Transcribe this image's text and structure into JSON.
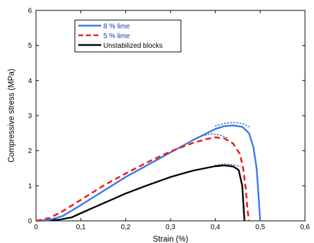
{
  "chart_data": {
    "type": "line",
    "title": "",
    "xlabel": "Strain (%)",
    "ylabel": "Compressive stress (MPa)",
    "xlim": [
      0,
      0.6
    ],
    "ylim": [
      0,
      6
    ],
    "xticks": [
      "0",
      "0,1",
      "0,2",
      "0,3",
      "0,4",
      "0,5",
      "0,6"
    ],
    "yticks": [
      "0",
      "1",
      "2",
      "3",
      "4",
      "5",
      "6"
    ],
    "grid": false,
    "legend_position": "top-left",
    "series": [
      {
        "name": "8 % lime",
        "color": "#3a78e6",
        "style": "solid",
        "x": [
          0.0,
          0.03,
          0.06,
          0.1,
          0.15,
          0.2,
          0.25,
          0.3,
          0.35,
          0.4,
          0.42,
          0.44,
          0.46,
          0.475,
          0.485,
          0.492,
          0.497,
          0.5
        ],
        "y": [
          0.0,
          0.03,
          0.14,
          0.45,
          0.85,
          1.25,
          1.6,
          1.95,
          2.3,
          2.62,
          2.7,
          2.72,
          2.68,
          2.5,
          2.1,
          1.5,
          0.6,
          0.0
        ]
      },
      {
        "name": "5 % lime",
        "color": "#e8211b",
        "style": "dashed",
        "x": [
          0.0,
          0.03,
          0.06,
          0.1,
          0.15,
          0.2,
          0.25,
          0.3,
          0.35,
          0.38,
          0.4,
          0.42,
          0.44,
          0.455,
          0.462,
          0.468,
          0.472,
          0.475
        ],
        "y": [
          0.0,
          0.08,
          0.28,
          0.6,
          1.0,
          1.35,
          1.68,
          1.98,
          2.22,
          2.33,
          2.38,
          2.35,
          2.2,
          1.9,
          1.5,
          0.9,
          0.3,
          0.0
        ]
      },
      {
        "name": "Unstabilized blocks",
        "color": "#000000",
        "style": "solid",
        "x": [
          0.0,
          0.05,
          0.08,
          0.1,
          0.15,
          0.2,
          0.25,
          0.3,
          0.35,
          0.4,
          0.42,
          0.44,
          0.452,
          0.46,
          0.465
        ],
        "y": [
          0.0,
          0.03,
          0.1,
          0.22,
          0.5,
          0.78,
          1.02,
          1.25,
          1.43,
          1.56,
          1.58,
          1.55,
          1.45,
          1.0,
          0.0
        ]
      }
    ],
    "fit_curves": [
      {
        "color": "#1a3aa0",
        "x": [
          0.4,
          0.42,
          0.44,
          0.46,
          0.475
        ],
        "y": [
          2.7,
          2.78,
          2.8,
          2.78,
          2.68
        ]
      },
      {
        "color": "#1a3aa0",
        "x": [
          0.37,
          0.39,
          0.41,
          0.43
        ],
        "y": [
          2.42,
          2.48,
          2.45,
          2.35
        ]
      },
      {
        "color": "#1a3aa0",
        "x": [
          0.4,
          0.42,
          0.44,
          0.455
        ],
        "y": [
          1.58,
          1.62,
          1.6,
          1.55
        ]
      }
    ]
  }
}
